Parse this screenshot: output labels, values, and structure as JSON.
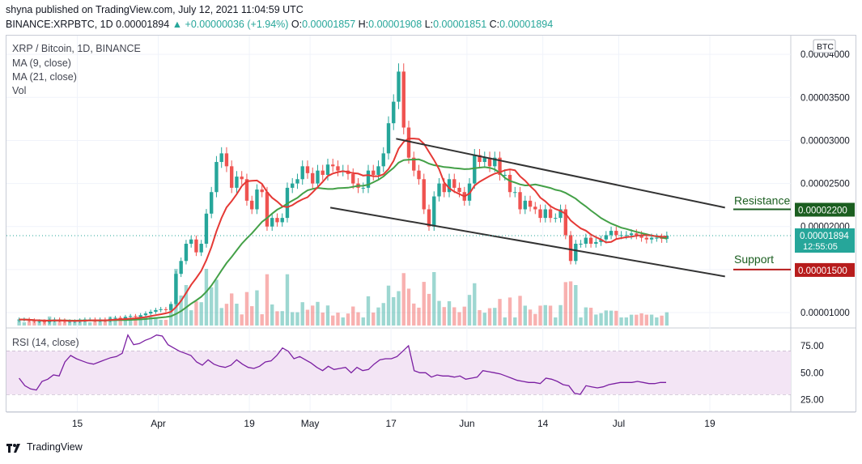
{
  "header": {
    "published": "shyna published on TradingView.com, July 12, 2021 11:04:59 UTC",
    "symbol": "BINANCE:XRPBTC, 1D",
    "last": "0.00001894",
    "change_arrow": "▲",
    "change": "+0.00000036 (+1.94%)",
    "o_label": "O:",
    "o_value": "0.00001857",
    "h_label": "H:",
    "h_value": "0.00001908",
    "l_label": "L:",
    "l_value": "0.00001851",
    "c_label": "C:",
    "c_value": "0.00001894"
  },
  "legend": {
    "title": "XRP / Bitcoin, 1D, BINANCE",
    "ma9": "MA (9, close)",
    "ma21": "MA (21, close)",
    "vol": "Vol",
    "rsi": "RSI (14, close)"
  },
  "currency_badge": "BTC",
  "annotations": {
    "resistance_label": "Resistance",
    "resistance_value": "0.00002200",
    "support_label": "Support",
    "support_value": "0.00001500",
    "last_price": "0.00001894",
    "countdown": "12:55:05"
  },
  "footer": {
    "brand": "TradingView"
  },
  "colors": {
    "up": "#26a69a",
    "down": "#ef5350",
    "ma9": "#e53935",
    "ma21": "#43a047",
    "rsi_line": "#7b1fa2",
    "rsi_band": "#f3e5f5",
    "resistance": "#1b5e20",
    "support": "#b71c1c",
    "channel": "#333333"
  },
  "chart_data": {
    "type": "candlestick",
    "title": "XRP / Bitcoin, 1D, BINANCE",
    "price_axis": {
      "ticks": [
        1e-05,
        1.5e-05,
        2e-05,
        2.5e-05,
        3e-05,
        3.5e-05,
        4e-05
      ],
      "tick_labels": [
        "0.00001000",
        "0.00001500",
        "0.00002000",
        "0.00002500",
        "0.00003000",
        "0.00003500",
        "0.00004000"
      ],
      "range": [
        8.5e-06,
        4.18e-05
      ]
    },
    "time_axis": {
      "labels": [
        "15",
        "Apr",
        "19",
        "May",
        "17",
        "Jun",
        "14",
        "Jul",
        "19"
      ],
      "label_days": [
        14,
        30,
        48,
        60,
        76,
        91,
        106,
        121,
        139
      ],
      "start": "2021-03-01",
      "days_total": 155
    },
    "candles_close": [
      9.2e-06,
      9.2e-06,
      9.1e-06,
      9e-06,
      9e-06,
      8.9e-06,
      9.1e-06,
      9.2e-06,
      9.1e-06,
      9e-06,
      9e-06,
      9e-06,
      9.1e-06,
      9.2e-06,
      9.2e-06,
      9.1e-06,
      9.2e-06,
      9.1e-06,
      9.3e-06,
      9.4e-06,
      9.3e-06,
      9.5e-06,
      9.6e-06,
      9.5e-06,
      9.7e-06,
      9.9e-06,
      1.01e-05,
      1.03e-05,
      1.04e-05,
      1.03e-05,
      1.1e-05,
      1.45e-05,
      1.6e-05,
      1.8e-05,
      1.85e-05,
      1.7e-05,
      1.8e-05,
      2.15e-05,
      2.4e-05,
      2.75e-05,
      2.85e-05,
      2.7e-05,
      2.45e-05,
      2.58e-05,
      2.55e-05,
      2.3e-05,
      2.2e-05,
      2.43e-05,
      2.4e-05,
      2e-05,
      2.1e-05,
      2.05e-05,
      2.1e-05,
      2.45e-05,
      2.5e-05,
      2.55e-05,
      2.7e-05,
      2.62e-05,
      2.5e-05,
      2.65e-05,
      2.6e-05,
      2.72e-05,
      2.7e-05,
      2.65e-05,
      2.65e-05,
      2.61e-05,
      2.5e-05,
      2.45e-05,
      2.45e-05,
      2.65e-05,
      2.6e-05,
      2.7e-05,
      2.85e-05,
      3.2e-05,
      3.45e-05,
      3.8e-05,
      3.15e-05,
      2.8e-05,
      2.65e-05,
      2.55e-05,
      2.2e-05,
      2e-05,
      2.35e-05,
      2.5e-05,
      2.4e-05,
      2.55e-05,
      2.45e-05,
      2.4e-05,
      2.3e-05,
      2.5e-05,
      2.83e-05,
      2.75e-05,
      2.8e-05,
      2.7e-05,
      2.8e-05,
      2.6e-05,
      2.6e-05,
      2.4e-05,
      2.4e-05,
      2.2e-05,
      2.3e-05,
      2.23e-05,
      2.2e-05,
      2.1e-05,
      2.2e-05,
      2.1e-05,
      2.1e-05,
      2.2e-05,
      1.9e-05,
      1.6e-05,
      1.8e-05,
      1.8e-05,
      1.87e-05,
      1.8e-05,
      1.82e-05,
      1.85e-05,
      1.9e-05,
      1.95e-05,
      1.9e-05,
      1.9e-05,
      1.9e-05,
      1.92e-05,
      1.9e-05,
      1.87e-05,
      1.85e-05,
      1.87e-05,
      1.87e-05,
      1.857e-05,
      1.894e-05
    ],
    "ma9": "red moving average (9, close)",
    "ma21": "green moving average (21, close)",
    "rsi_axis": {
      "ticks": [
        25,
        50,
        75
      ],
      "tick_labels": [
        "25.00",
        "50.00",
        "75.00"
      ],
      "band": [
        30,
        70
      ]
    },
    "rsi_series": [
      45,
      38,
      35,
      34,
      42,
      44,
      48,
      47,
      60,
      66,
      63,
      61,
      59,
      58,
      60,
      62,
      64,
      65,
      68,
      85,
      76,
      77,
      80,
      82,
      85,
      84,
      76,
      73,
      70,
      68,
      66,
      60,
      57,
      62,
      58,
      56,
      55,
      57,
      62,
      58,
      55,
      54,
      56,
      60,
      61,
      66,
      73,
      70,
      63,
      65,
      62,
      59,
      55,
      52,
      56,
      53,
      54,
      55,
      50,
      55,
      52,
      53,
      58,
      62,
      63,
      63,
      65,
      70,
      75,
      52,
      50,
      50,
      46,
      48,
      47,
      47,
      46,
      47,
      44,
      45,
      46,
      52,
      51,
      50,
      49,
      47,
      45,
      43,
      42,
      41,
      41,
      40,
      45,
      44,
      42,
      39,
      38,
      31,
      30,
      38,
      37,
      36,
      37,
      39,
      40,
      41,
      41,
      41,
      42,
      41,
      40,
      40,
      41,
      41
    ],
    "trendlines": {
      "upper_channel": {
        "from": [
          "2021-05-17",
          3.02e-05
        ],
        "to": [
          "2021-07-21",
          2.22e-05
        ]
      },
      "lower_channel": {
        "from": [
          "2021-05-04",
          2.22e-05
        ],
        "to": [
          "2021-07-21",
          1.42e-05
        ]
      },
      "resistance": 2.2e-05,
      "support": 1.5e-05
    },
    "volume_note": "volume bars colored by candle direction"
  }
}
